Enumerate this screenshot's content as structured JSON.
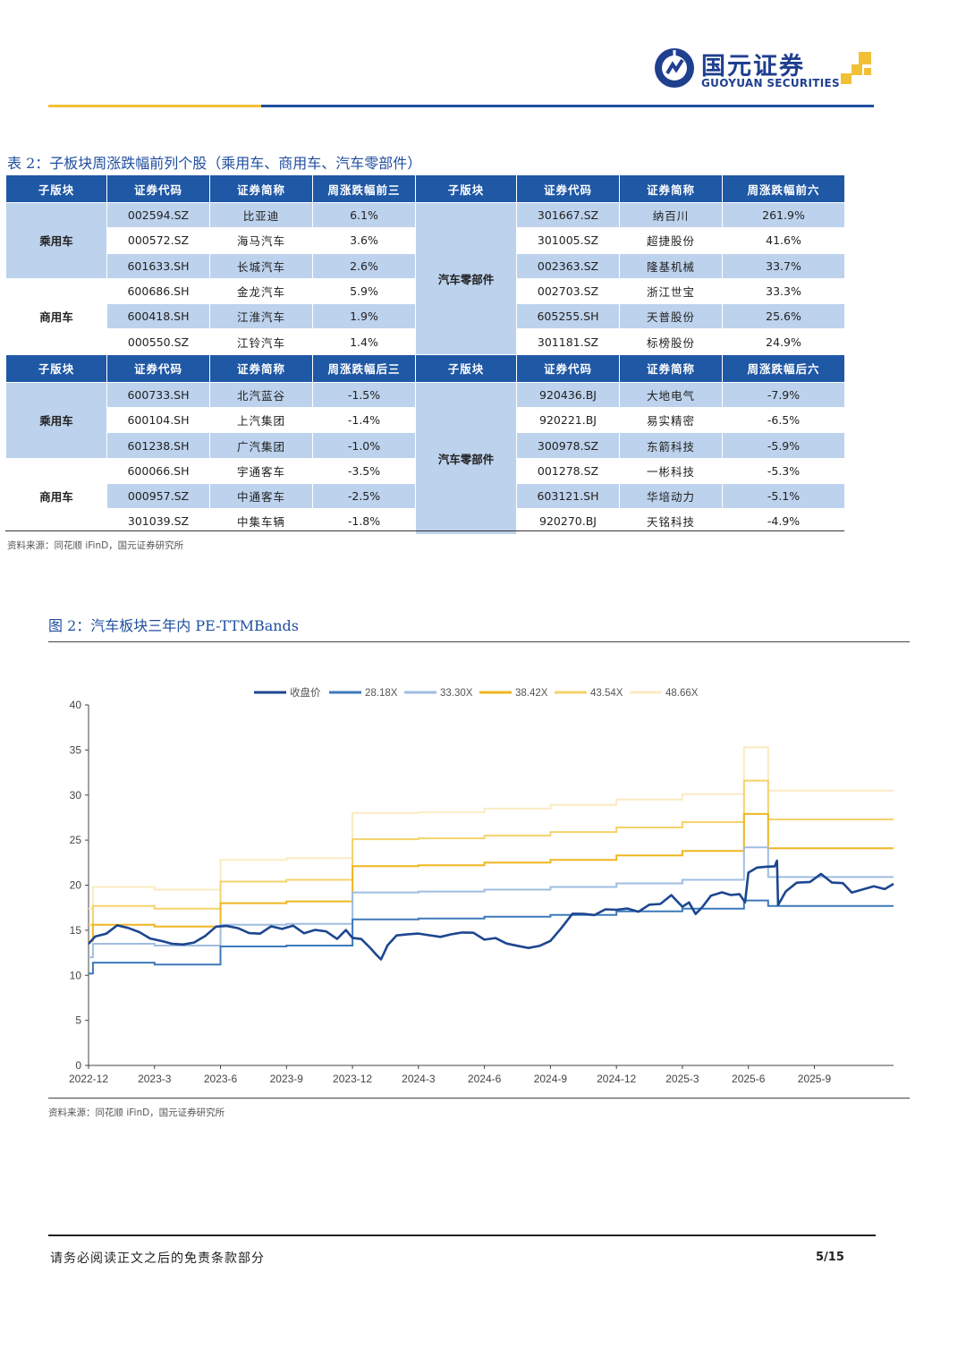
{
  "header": {
    "logo_cn": "国元证券",
    "logo_en": "GUOYUAN SECURITIES"
  },
  "table": {
    "title": "表 2：子板块周涨跌幅前列个股（乘用车、商用车、汽车零部件）",
    "top_headers": [
      "子版块",
      "证券代码",
      "证券简称",
      "周涨跌幅前三",
      "子版块",
      "证券代码",
      "证券简称",
      "周涨跌幅前六"
    ],
    "bottom_headers": [
      "子版块",
      "证券代码",
      "证券简称",
      "周涨跌幅后三",
      "子版块",
      "证券代码",
      "证券简称",
      "周涨跌幅后六"
    ],
    "groups": {
      "passenger": "乘用车",
      "commercial": "商用车",
      "parts": "汽车零部件"
    },
    "top_rows": [
      {
        "code": "002594.SZ",
        "name": "比亚迪",
        "chg": "6.1%",
        "code2": "301667.SZ",
        "name2": "纳百川",
        "chg2": "261.9%"
      },
      {
        "code": "000572.SZ",
        "name": "海马汽车",
        "chg": "3.6%",
        "code2": "301005.SZ",
        "name2": "超捷股份",
        "chg2": "41.6%"
      },
      {
        "code": "601633.SH",
        "name": "长城汽车",
        "chg": "2.6%",
        "code2": "002363.SZ",
        "name2": "隆基机械",
        "chg2": "33.7%"
      },
      {
        "code": "600686.SH",
        "name": "金龙汽车",
        "chg": "5.9%",
        "code2": "002703.SZ",
        "name2": "浙江世宝",
        "chg2": "33.3%"
      },
      {
        "code": "600418.SH",
        "name": "江淮汽车",
        "chg": "1.9%",
        "code2": "605255.SH",
        "name2": "天普股份",
        "chg2": "25.6%"
      },
      {
        "code": "000550.SZ",
        "name": "江铃汽车",
        "chg": "1.4%",
        "code2": "301181.SZ",
        "name2": "标榜股份",
        "chg2": "24.9%"
      }
    ],
    "bottom_rows": [
      {
        "code": "600733.SH",
        "name": "北汽蓝谷",
        "chg": "-1.5%",
        "code2": "920436.BJ",
        "name2": "大地电气",
        "chg2": "-7.9%"
      },
      {
        "code": "600104.SH",
        "name": "上汽集团",
        "chg": "-1.4%",
        "code2": "920221.BJ",
        "name2": "易实精密",
        "chg2": "-6.5%"
      },
      {
        "code": "601238.SH",
        "name": "广汽集团",
        "chg": "-1.0%",
        "code2": "300978.SZ",
        "name2": "东箭科技",
        "chg2": "-5.9%"
      },
      {
        "code": "600066.SH",
        "name": "宇通客车",
        "chg": "-3.5%",
        "code2": "001278.SZ",
        "name2": "一彬科技",
        "chg2": "-5.3%"
      },
      {
        "code": "000957.SZ",
        "name": "中通客车",
        "chg": "-2.5%",
        "code2": "603121.SH",
        "name2": "华培动力",
        "chg2": "-5.1%"
      },
      {
        "code": "301039.SZ",
        "name": "中集车辆",
        "chg": "-1.8%",
        "code2": "920270.BJ",
        "name2": "天铭科技",
        "chg2": "-4.9%"
      }
    ],
    "source": "资料来源：同花顺 iFinD，国元证券研究所"
  },
  "chart": {
    "title": "图 2：汽车板块三年内 PE-TTMBands",
    "source": "资料来源：同花顺 iFinD，国元证券研究所"
  },
  "chart_data": {
    "type": "line",
    "title": "汽车板块三年内 PE-TTMBands",
    "xlabel": "",
    "ylabel": "",
    "ylim": [
      0,
      40
    ],
    "yticks": [
      0,
      5,
      10,
      15,
      20,
      25,
      30,
      35,
      40
    ],
    "xticks": [
      "2022-12",
      "2023-3",
      "2023-6",
      "2023-9",
      "2023-12",
      "2024-3",
      "2024-6",
      "2024-9",
      "2024-12",
      "2025-3",
      "2025-6",
      "2025-9"
    ],
    "legend": "top-center",
    "band_steps_months": [
      0,
      0.2,
      3.0,
      6.0,
      9.0,
      12.0,
      15.0,
      18.0,
      21.0,
      24.0,
      27.0,
      29.8,
      30.9,
      36.6
    ],
    "series": [
      {
        "name": "收盘价",
        "color": "#1c4690",
        "width": 2.6,
        "points": [
          [
            0,
            13.5
          ],
          [
            0.3,
            14.2
          ],
          [
            0.8,
            14.8
          ],
          [
            1.3,
            15.3
          ],
          [
            1.8,
            15.5
          ],
          [
            2.3,
            14.6
          ],
          [
            2.8,
            14.2
          ],
          [
            3.3,
            13.8
          ],
          [
            3.8,
            13.4
          ],
          [
            4.3,
            13.6
          ],
          [
            4.8,
            13.4
          ],
          [
            5.3,
            14.6
          ],
          [
            5.8,
            15.2
          ],
          [
            6.3,
            15.6
          ],
          [
            6.8,
            15.2
          ],
          [
            7.3,
            14.6
          ],
          [
            7.8,
            14.8
          ],
          [
            8.3,
            15.2
          ],
          [
            8.8,
            15.4
          ],
          [
            9.3,
            15.3
          ],
          [
            9.8,
            14.8
          ],
          [
            10.3,
            15.0
          ],
          [
            10.8,
            14.8
          ],
          [
            11.3,
            14.2
          ],
          [
            11.7,
            14.8
          ],
          [
            12.0,
            14.4
          ],
          [
            12.4,
            13.8
          ],
          [
            12.8,
            13.2
          ],
          [
            13.1,
            12.2
          ],
          [
            13.3,
            11.7
          ],
          [
            13.6,
            13.5
          ],
          [
            14.0,
            14.2
          ],
          [
            14.5,
            14.8
          ],
          [
            15.0,
            14.4
          ],
          [
            15.5,
            14.6
          ],
          [
            16.0,
            14.2
          ],
          [
            16.5,
            14.5
          ],
          [
            17.0,
            14.9
          ],
          [
            17.5,
            14.5
          ],
          [
            18.0,
            14.2
          ],
          [
            18.5,
            13.9
          ],
          [
            19.0,
            13.7
          ],
          [
            19.5,
            13.2
          ],
          [
            20.0,
            13.0
          ],
          [
            20.5,
            13.4
          ],
          [
            21.0,
            13.6
          ],
          [
            21.5,
            15.5
          ],
          [
            22.0,
            16.6
          ],
          [
            22.5,
            17.0
          ],
          [
            23.0,
            16.6
          ],
          [
            23.5,
            17.3
          ],
          [
            24.0,
            17.4
          ],
          [
            24.5,
            17.2
          ],
          [
            25.0,
            17.3
          ],
          [
            25.5,
            17.6
          ],
          [
            26.0,
            18.1
          ],
          [
            26.5,
            18.8
          ],
          [
            27.0,
            17.6
          ],
          [
            27.3,
            18.2
          ],
          [
            27.6,
            16.6
          ],
          [
            27.9,
            17.8
          ],
          [
            28.3,
            18.6
          ],
          [
            28.8,
            19.4
          ],
          [
            29.2,
            18.8
          ],
          [
            29.6,
            19.0
          ],
          [
            29.85,
            18.2
          ],
          [
            30.0,
            21.2
          ],
          [
            30.4,
            22.2
          ],
          [
            30.8,
            21.8
          ],
          [
            31.2,
            22.3
          ],
          [
            31.3,
            22.6
          ],
          [
            31.35,
            17.8
          ],
          [
            31.7,
            19.4
          ],
          [
            32.2,
            20.1
          ],
          [
            32.8,
            20.6
          ],
          [
            33.3,
            21.0
          ],
          [
            33.8,
            20.5
          ],
          [
            34.3,
            20.1
          ],
          [
            34.7,
            19.2
          ],
          [
            35.2,
            19.6
          ],
          [
            35.7,
            19.7
          ],
          [
            36.2,
            19.8
          ],
          [
            36.6,
            19.9
          ]
        ]
      },
      {
        "name": "28.18X",
        "color": "#3d79ba",
        "width": 2,
        "levels": [
          10.2,
          11.4,
          11.2,
          13.2,
          13.3,
          16.2,
          16.3,
          16.5,
          16.7,
          17.1,
          17.4,
          18.3,
          17.7,
          17.6
        ]
      },
      {
        "name": "33.30X",
        "color": "#9fbde0",
        "width": 2,
        "levels": [
          12.0,
          13.5,
          13.3,
          15.6,
          15.7,
          19.2,
          19.3,
          19.5,
          19.8,
          20.2,
          20.6,
          24.2,
          20.9,
          20.8
        ]
      },
      {
        "name": "38.42X",
        "color": "#f0b620",
        "width": 2,
        "levels": [
          13.8,
          15.6,
          15.4,
          18.0,
          18.2,
          22.1,
          22.2,
          22.5,
          22.8,
          23.3,
          23.8,
          27.9,
          24.1,
          24.0
        ]
      },
      {
        "name": "43.54X",
        "color": "#f5d26b",
        "width": 2,
        "levels": [
          15.6,
          17.7,
          17.4,
          20.4,
          20.6,
          25.1,
          25.2,
          25.5,
          25.9,
          26.4,
          27.0,
          31.6,
          27.3,
          27.2
        ]
      },
      {
        "name": "48.66X",
        "color": "#faebc2",
        "width": 2,
        "levels": [
          17.4,
          19.8,
          19.5,
          22.8,
          23.0,
          28.0,
          28.1,
          28.5,
          28.9,
          29.5,
          30.1,
          35.3,
          30.5,
          30.4
        ]
      }
    ]
  },
  "footer": {
    "disclaimer": "请务必阅读正文之后的免责条款部分",
    "page": "5/15"
  }
}
